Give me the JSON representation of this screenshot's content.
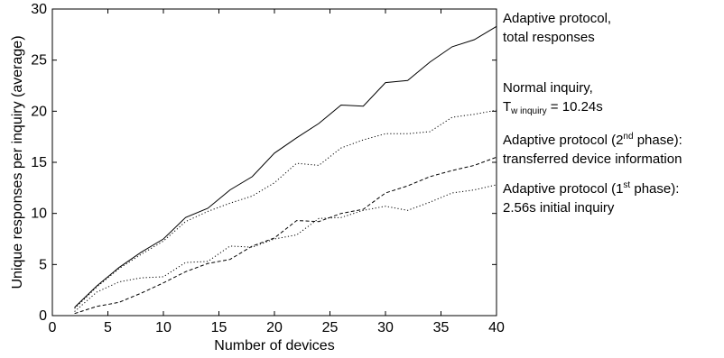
{
  "chart_data": {
    "type": "line",
    "xlabel": "Number of devices",
    "ylabel": "Unique responses per inquiry (average)",
    "xlim": [
      0,
      40
    ],
    "ylim": [
      0,
      30
    ],
    "xticks": [
      0,
      5,
      10,
      15,
      20,
      25,
      30,
      35,
      40
    ],
    "yticks": [
      0,
      5,
      10,
      15,
      20,
      25,
      30
    ],
    "grid": false,
    "x": [
      2,
      4,
      6,
      8,
      10,
      12,
      14,
      16,
      18,
      20,
      22,
      24,
      26,
      28,
      30,
      32,
      34,
      36,
      38,
      40
    ],
    "series": [
      {
        "name": "Adaptive protocol, total responses",
        "style": "solid",
        "values": [
          0.8,
          2.9,
          4.7,
          6.2,
          7.5,
          9.6,
          10.5,
          12.3,
          13.6,
          15.9,
          17.4,
          18.8,
          20.6,
          20.5,
          22.8,
          23.0,
          24.8,
          26.3,
          27.0,
          28.3
        ]
      },
      {
        "name": "Normal inquiry, T_w inquiry = 10.24s",
        "style": "dotted",
        "values": [
          0.7,
          2.8,
          4.6,
          6.0,
          7.3,
          9.2,
          10.2,
          11.0,
          11.7,
          13.0,
          14.9,
          14.7,
          16.4,
          17.2,
          17.8,
          17.8,
          18.0,
          19.4,
          19.7,
          20.1
        ]
      },
      {
        "name": "Adaptive protocol (2nd phase): transferred device information",
        "style": "dashed",
        "values": [
          0.2,
          0.9,
          1.3,
          2.2,
          3.2,
          4.3,
          5.1,
          5.5,
          6.8,
          7.6,
          9.3,
          9.2,
          10.0,
          10.4,
          12.0,
          12.7,
          13.6,
          14.2,
          14.7,
          15.5
        ]
      },
      {
        "name": "Adaptive protocol (1st phase): 2.56s initial inquiry",
        "style": "dotted",
        "values": [
          0.4,
          2.3,
          3.3,
          3.7,
          3.8,
          5.2,
          5.3,
          6.8,
          6.7,
          7.5,
          7.9,
          9.5,
          9.6,
          10.3,
          10.7,
          10.3,
          11.1,
          12.0,
          12.3,
          12.8
        ]
      }
    ],
    "annotations": {
      "a1_line1": "Adaptive protocol,",
      "a1_line2": "total responses",
      "a2_line1": "Normal inquiry,",
      "a2_T": "T",
      "a2_sub": "w inquiry",
      "a2_rest": " = 10.24s",
      "a3_pre": "Adaptive protocol (2",
      "a3_sup": "nd",
      "a3_post": " phase):",
      "a3_line2": "transferred device information",
      "a4_pre": "Adaptive protocol (1",
      "a4_sup": "st",
      "a4_post": " phase):",
      "a4_line2": "2.56s initial inquiry"
    }
  }
}
